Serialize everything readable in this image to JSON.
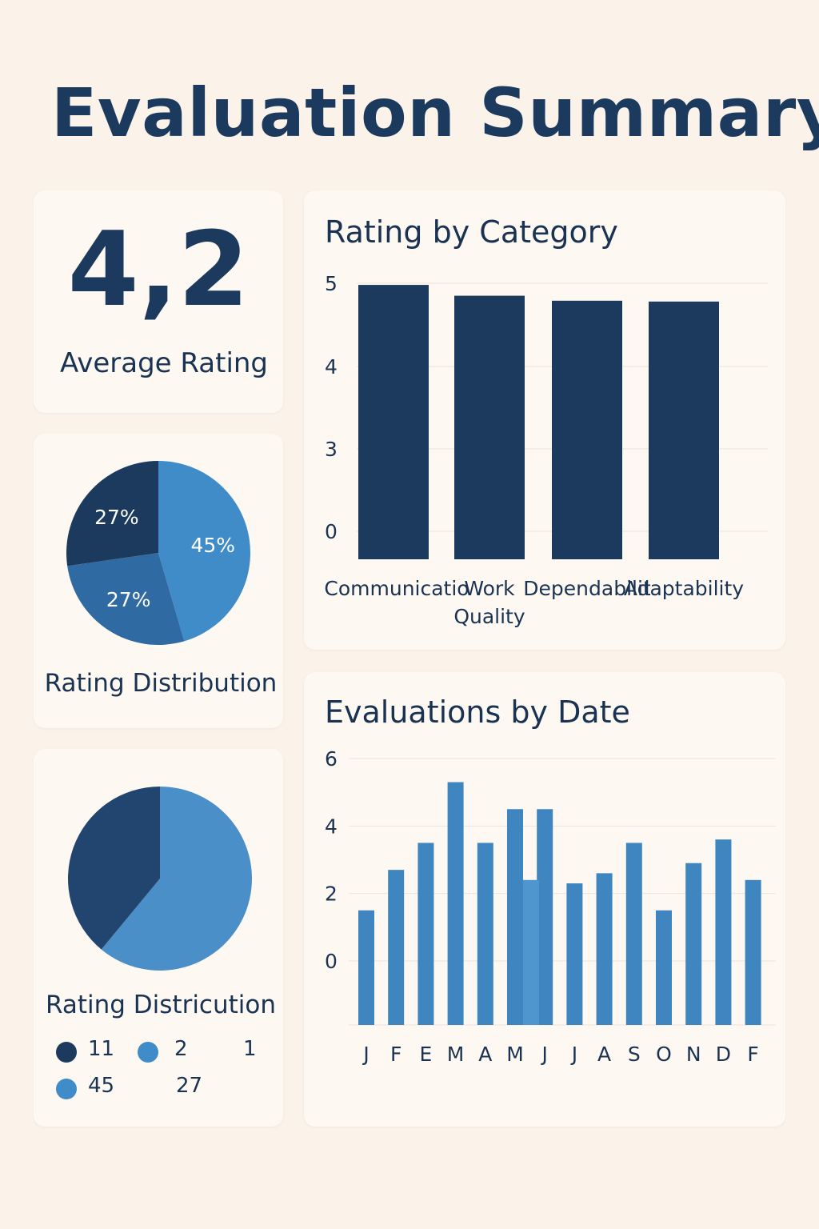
{
  "page": {
    "title": "Evaluation Summary"
  },
  "summary": {
    "value": "4,2",
    "label": "Average Rating"
  },
  "colors": {
    "dark": "#1c3a5e",
    "mid": "#2f6aa3",
    "light": "#3f8cc9",
    "bar_blue": "#3f86c1"
  },
  "chart_data": [
    {
      "type": "pie",
      "title": "Rating Distribution",
      "slices": [
        {
          "label": "45%",
          "value": 45,
          "color": "#3f8cc9"
        },
        {
          "label": "27%",
          "value": 27,
          "color": "#2f6aa3"
        },
        {
          "label": "27%",
          "value": 27,
          "color": "#1c3a5e"
        }
      ]
    },
    {
      "type": "pie",
      "title": "Rating Districution",
      "slices": [
        {
          "value": 61,
          "color": "#4a8fc8"
        },
        {
          "value": 39,
          "color": "#21456e"
        }
      ],
      "legend": [
        {
          "label": "11",
          "color": "#1c3a5e"
        },
        {
          "label": "2",
          "color": "#3f8cc9"
        },
        {
          "label": "1",
          "color": ""
        },
        {
          "label": "45",
          "color": "#3f8cc9"
        },
        {
          "label": "27",
          "color": ""
        }
      ]
    },
    {
      "type": "bar",
      "title": "Rating by Category",
      "categories": [
        "Communicatio",
        "Work\nQuality",
        "Dependabilit",
        "Adaptability"
      ],
      "values": [
        4.98,
        4.85,
        4.79,
        4.78
      ],
      "yticks": [
        "0",
        "3",
        "4",
        "5"
      ],
      "color": "#1c3a5e",
      "grid": true
    },
    {
      "type": "bar",
      "title": "Evaluations by Date",
      "categories": [
        "J",
        "F",
        "E",
        "M",
        "A",
        "M",
        "J",
        "J",
        "A",
        "S",
        "O",
        "N",
        "D",
        "F"
      ],
      "values": [
        1.5,
        2.7,
        3.5,
        5.3,
        3.5,
        4.5,
        4.5,
        2.3,
        2.6,
        3.5,
        1.5,
        2.9,
        3.6,
        2.4
      ],
      "extra_bars": [
        {
          "after_index": 5,
          "value": 2.4
        }
      ],
      "yticks": [
        "0",
        "2",
        "4",
        "6"
      ],
      "ylim": [
        0,
        6
      ],
      "color": "#3f86c1",
      "grid": true
    }
  ]
}
